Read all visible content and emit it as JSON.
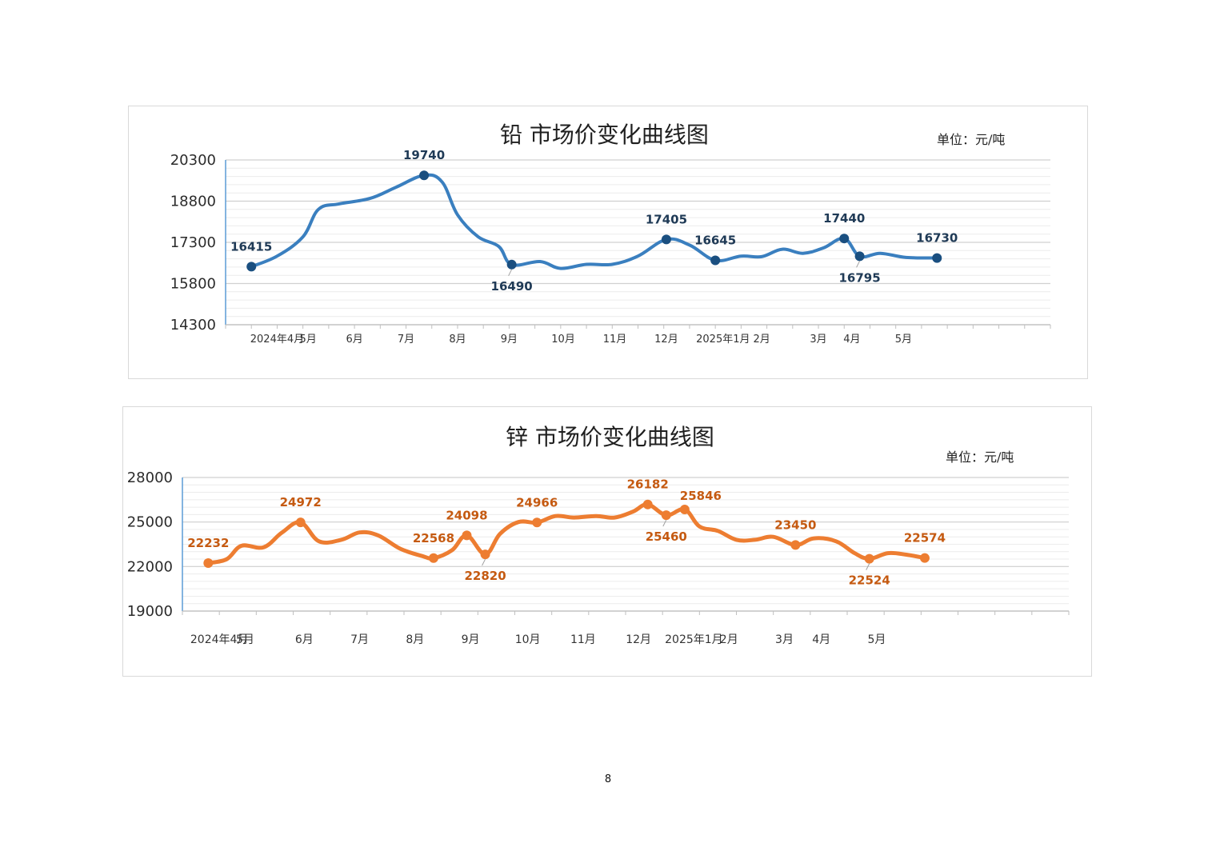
{
  "chart_data": [
    {
      "type": "line",
      "title": "铅 市场价变化曲线图",
      "unit": "单位：元/吨",
      "color": "#3a7fbf",
      "marker_color": "#1a4f80",
      "label_color": "#1f3a56",
      "ylim": [
        14300,
        20300
      ],
      "yticks": [
        14300,
        15800,
        17300,
        18800,
        20300
      ],
      "xlim": [
        0,
        16
      ],
      "x_labels": [
        {
          "x": 1,
          "label": "2024年4月"
        },
        {
          "x": 1.6,
          "label": "5月"
        },
        {
          "x": 2.5,
          "label": "6月"
        },
        {
          "x": 3.5,
          "label": "7月"
        },
        {
          "x": 4.5,
          "label": "8月"
        },
        {
          "x": 5.5,
          "label": "9月"
        },
        {
          "x": 6.55,
          "label": "10月"
        },
        {
          "x": 7.55,
          "label": "11月"
        },
        {
          "x": 8.55,
          "label": "12月"
        },
        {
          "x": 9.65,
          "label": "2025年1月"
        },
        {
          "x": 10.4,
          "label": "2月"
        },
        {
          "x": 11.5,
          "label": "3月"
        },
        {
          "x": 12.15,
          "label": "4月"
        },
        {
          "x": 13.15,
          "label": "5月"
        }
      ],
      "series": [
        {
          "points": [
            [
              0.5,
              16415
            ],
            [
              1.0,
              16800
            ],
            [
              1.5,
              17500
            ],
            [
              1.8,
              18500
            ],
            [
              2.2,
              18700
            ],
            [
              2.8,
              18900
            ],
            [
              3.3,
              19300
            ],
            [
              3.85,
              19740
            ],
            [
              4.2,
              19500
            ],
            [
              4.5,
              18300
            ],
            [
              4.9,
              17500
            ],
            [
              5.3,
              17150
            ],
            [
              5.55,
              16490
            ],
            [
              6.1,
              16600
            ],
            [
              6.5,
              16350
            ],
            [
              7.0,
              16500
            ],
            [
              7.5,
              16500
            ],
            [
              8.0,
              16800
            ],
            [
              8.55,
              17405
            ],
            [
              9.0,
              17200
            ],
            [
              9.5,
              16645
            ],
            [
              10.0,
              16800
            ],
            [
              10.4,
              16780
            ],
            [
              10.8,
              17050
            ],
            [
              11.2,
              16900
            ],
            [
              11.6,
              17100
            ],
            [
              12.0,
              17440
            ],
            [
              12.3,
              16795
            ],
            [
              12.7,
              16900
            ],
            [
              13.2,
              16750
            ],
            [
              13.8,
              16730
            ]
          ],
          "markers": [
            {
              "x": 0.5,
              "y": 16415,
              "label": "16415",
              "pos": "above"
            },
            {
              "x": 3.85,
              "y": 19740,
              "label": "19740",
              "pos": "above"
            },
            {
              "x": 5.55,
              "y": 16490,
              "label": "16490",
              "pos": "below"
            },
            {
              "x": 8.55,
              "y": 17405,
              "label": "17405",
              "pos": "above"
            },
            {
              "x": 9.5,
              "y": 16645,
              "label": "16645",
              "pos": "above"
            },
            {
              "x": 12.0,
              "y": 17440,
              "label": "17440",
              "pos": "above"
            },
            {
              "x": 12.3,
              "y": 16795,
              "label": "16795",
              "pos": "below"
            },
            {
              "x": 13.8,
              "y": 16730,
              "label": "16730",
              "pos": "above"
            }
          ]
        }
      ]
    },
    {
      "type": "line",
      "title": "锌 市场价变化曲线图",
      "unit": "单位：元/吨",
      "color": "#ed7d31",
      "marker_color": "#ed7d31",
      "label_color": "#c55a11",
      "ylim": [
        19000,
        28000
      ],
      "yticks": [
        19000,
        22000,
        25000,
        28000
      ],
      "xlim": [
        0,
        24
      ],
      "x_labels": [
        {
          "x": 1,
          "label": "2024年4月"
        },
        {
          "x": 1.7,
          "label": "5月"
        },
        {
          "x": 3.3,
          "label": "6月"
        },
        {
          "x": 4.8,
          "label": "7月"
        },
        {
          "x": 6.3,
          "label": "8月"
        },
        {
          "x": 7.8,
          "label": "9月"
        },
        {
          "x": 9.35,
          "label": "10月"
        },
        {
          "x": 10.85,
          "label": "11月"
        },
        {
          "x": 12.35,
          "label": "12月"
        },
        {
          "x": 13.85,
          "label": "2025年1月"
        },
        {
          "x": 14.8,
          "label": "2月"
        },
        {
          "x": 16.3,
          "label": "3月"
        },
        {
          "x": 17.3,
          "label": "4月"
        },
        {
          "x": 18.8,
          "label": "5月"
        }
      ],
      "series": [
        {
          "points": [
            [
              0.7,
              22232
            ],
            [
              1.2,
              22500
            ],
            [
              1.6,
              23400
            ],
            [
              2.2,
              23300
            ],
            [
              2.7,
              24300
            ],
            [
              3.2,
              24972
            ],
            [
              3.7,
              23700
            ],
            [
              4.3,
              23800
            ],
            [
              4.8,
              24300
            ],
            [
              5.3,
              24100
            ],
            [
              5.9,
              23200
            ],
            [
              6.5,
              22700
            ],
            [
              6.8,
              22568
            ],
            [
              7.3,
              23100
            ],
            [
              7.7,
              24098
            ],
            [
              8.2,
              22820
            ],
            [
              8.6,
              24200
            ],
            [
              9.1,
              25000
            ],
            [
              9.6,
              24966
            ],
            [
              10.1,
              25400
            ],
            [
              10.6,
              25300
            ],
            [
              11.2,
              25400
            ],
            [
              11.7,
              25300
            ],
            [
              12.2,
              25700
            ],
            [
              12.6,
              26182
            ],
            [
              13.1,
              25460
            ],
            [
              13.6,
              25846
            ],
            [
              14.0,
              24700
            ],
            [
              14.5,
              24400
            ],
            [
              15.0,
              23800
            ],
            [
              15.5,
              23800
            ],
            [
              16.0,
              24000
            ],
            [
              16.6,
              23450
            ],
            [
              17.1,
              23900
            ],
            [
              17.7,
              23700
            ],
            [
              18.2,
              22900
            ],
            [
              18.6,
              22524
            ],
            [
              19.1,
              22900
            ],
            [
              19.6,
              22800
            ],
            [
              20.1,
              22574
            ]
          ],
          "markers": [
            {
              "x": 0.7,
              "y": 22232,
              "label": "22232",
              "pos": "above"
            },
            {
              "x": 3.2,
              "y": 24972,
              "label": "24972",
              "pos": "above"
            },
            {
              "x": 6.8,
              "y": 22568,
              "label": "22568",
              "pos": "above"
            },
            {
              "x": 7.7,
              "y": 24098,
              "label": "24098",
              "pos": "above"
            },
            {
              "x": 8.2,
              "y": 22820,
              "label": "22820",
              "pos": "below"
            },
            {
              "x": 9.6,
              "y": 24966,
              "label": "24966",
              "pos": "above"
            },
            {
              "x": 12.6,
              "y": 26182,
              "label": "26182",
              "pos": "above"
            },
            {
              "x": 13.1,
              "y": 25460,
              "label": "25460",
              "pos": "below"
            },
            {
              "x": 13.6,
              "y": 25846,
              "label": "25846",
              "pos": "above-right"
            },
            {
              "x": 16.6,
              "y": 23450,
              "label": "23450",
              "pos": "above"
            },
            {
              "x": 18.6,
              "y": 22524,
              "label": "22524",
              "pos": "below"
            },
            {
              "x": 20.1,
              "y": 22574,
              "label": "22574",
              "pos": "above"
            }
          ]
        }
      ]
    }
  ],
  "page_number": "8"
}
